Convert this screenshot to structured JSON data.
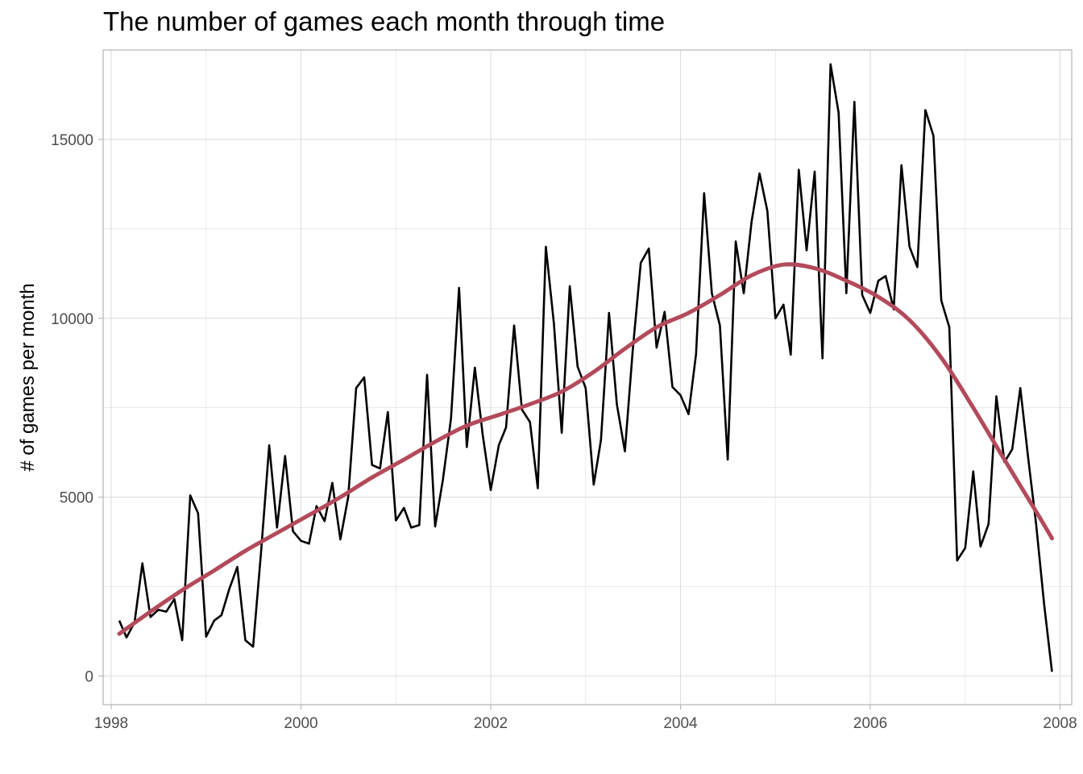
{
  "chart_data": {
    "type": "line",
    "title": "The number of games each month through time",
    "xlabel": "",
    "ylabel": "# of games per month",
    "x_axis": {
      "type": "date",
      "range": [
        "1997-12-01",
        "2008-02-15"
      ],
      "ticks": [
        "1998",
        "2000",
        "2002",
        "2004",
        "2006",
        "2008"
      ]
    },
    "y_axis": {
      "range": [
        -800,
        17500
      ],
      "ticks": [
        0,
        5000,
        10000,
        15000
      ]
    },
    "grid": true,
    "legend": "none",
    "colors": {
      "series": "#000000",
      "trend": "#b34a5b",
      "grid": "#dedede",
      "panel_border": "#b3b3b3"
    },
    "series": [
      {
        "type": "line",
        "x": [
          "1998-02-01",
          "1998-03-01",
          "1998-04-01",
          "1998-05-01",
          "1998-06-01",
          "1998-07-01",
          "1998-08-01",
          "1998-09-01",
          "1998-10-01",
          "1998-11-01",
          "1998-12-01",
          "1999-01-01",
          "1999-02-01",
          "1999-03-01",
          "1999-04-01",
          "1999-05-01",
          "1999-06-01",
          "1999-07-01",
          "1999-08-01",
          "1999-09-01",
          "1999-10-01",
          "1999-11-01",
          "1999-12-01",
          "2000-01-01",
          "2000-02-01",
          "2000-03-01",
          "2000-04-01",
          "2000-05-01",
          "2000-06-01",
          "2000-07-01",
          "2000-08-01",
          "2000-09-01",
          "2000-10-01",
          "2000-11-01",
          "2000-12-01",
          "2001-01-01",
          "2001-02-01",
          "2001-03-01",
          "2001-04-01",
          "2001-05-01",
          "2001-06-01",
          "2001-07-01",
          "2001-08-01",
          "2001-09-01",
          "2001-10-01",
          "2001-11-01",
          "2001-12-01",
          "2002-01-01",
          "2002-02-01",
          "2002-03-01",
          "2002-04-01",
          "2002-05-01",
          "2002-06-01",
          "2002-07-01",
          "2002-08-01",
          "2002-09-01",
          "2002-10-01",
          "2002-11-01",
          "2002-12-01",
          "2003-01-01",
          "2003-02-01",
          "2003-03-01",
          "2003-04-01",
          "2003-05-01",
          "2003-06-01",
          "2003-07-01",
          "2003-08-01",
          "2003-09-01",
          "2003-10-01",
          "2003-11-01",
          "2003-12-01",
          "2004-01-01",
          "2004-02-01",
          "2004-03-01",
          "2004-04-01",
          "2004-05-01",
          "2004-06-01",
          "2004-07-01",
          "2004-08-01",
          "2004-09-01",
          "2004-10-01",
          "2004-11-01",
          "2004-12-01",
          "2005-01-01",
          "2005-02-01",
          "2005-03-01",
          "2005-04-01",
          "2005-05-01",
          "2005-06-01",
          "2005-07-01",
          "2005-08-01",
          "2005-09-01",
          "2005-10-01",
          "2005-11-01",
          "2005-12-01",
          "2006-01-01",
          "2006-02-01",
          "2006-03-01",
          "2006-04-01",
          "2006-05-01",
          "2006-06-01",
          "2006-07-01",
          "2006-08-01",
          "2006-09-01",
          "2006-10-01",
          "2006-11-01",
          "2006-12-01",
          "2007-01-01",
          "2007-02-01",
          "2007-03-01",
          "2007-04-01",
          "2007-05-01",
          "2007-06-01",
          "2007-07-01",
          "2007-08-01",
          "2007-09-01",
          "2007-10-01",
          "2007-11-01",
          "2007-12-01"
        ],
        "values": [
          1550,
          1080,
          1500,
          3150,
          1650,
          1850,
          1800,
          2150,
          1000,
          5050,
          4550,
          1100,
          1550,
          1700,
          2450,
          3050,
          1000,
          820,
          3500,
          6450,
          4150,
          6150,
          4050,
          3780,
          3700,
          4750,
          4330,
          5400,
          3820,
          5000,
          8050,
          8350,
          5900,
          5800,
          7380,
          4350,
          4700,
          4150,
          4220,
          8420,
          4180,
          5480,
          7200,
          10850,
          6400,
          8620,
          6750,
          5200,
          6450,
          6950,
          9800,
          7450,
          7100,
          5250,
          12000,
          9850,
          6800,
          10900,
          8650,
          8050,
          5350,
          6600,
          10150,
          7600,
          6280,
          9100,
          11550,
          11950,
          9180,
          10180,
          8080,
          7850,
          7320,
          9000,
          13500,
          10700,
          9800,
          6050,
          12150,
          10700,
          12700,
          14050,
          13000,
          10000,
          10380,
          8980,
          14150,
          11900,
          14100,
          8880,
          17100,
          15750,
          10700,
          16050,
          10650,
          10150,
          11050,
          11180,
          10250,
          14280,
          12000,
          11430,
          15820,
          15100,
          10500,
          9750,
          3230,
          3580,
          5720,
          3620,
          4250,
          7820,
          5980,
          6340,
          8050,
          6050,
          4250,
          2000,
          120
        ]
      },
      {
        "type": "smooth",
        "x": [
          "1998-02-01",
          "1998-06-01",
          "1998-10-01",
          "1999-02-01",
          "1999-06-01",
          "1999-10-01",
          "2000-02-01",
          "2000-06-01",
          "2000-10-01",
          "2001-02-01",
          "2001-06-01",
          "2001-10-01",
          "2002-02-01",
          "2002-06-01",
          "2002-10-01",
          "2003-02-01",
          "2003-06-01",
          "2003-10-01",
          "2004-02-01",
          "2004-06-01",
          "2004-10-01",
          "2005-02-01",
          "2005-06-01",
          "2005-10-01",
          "2006-02-01",
          "2006-06-01",
          "2006-10-01",
          "2007-02-01",
          "2007-06-01",
          "2007-10-01",
          "2007-12-01"
        ],
        "values": [
          1180,
          1800,
          2400,
          2950,
          3500,
          4000,
          4500,
          5000,
          5550,
          6050,
          6550,
          7000,
          7300,
          7600,
          7950,
          8500,
          9150,
          9750,
          10150,
          10650,
          11200,
          11500,
          11400,
          11050,
          10600,
          9950,
          8900,
          7500,
          6050,
          4600,
          3850
        ]
      }
    ]
  }
}
